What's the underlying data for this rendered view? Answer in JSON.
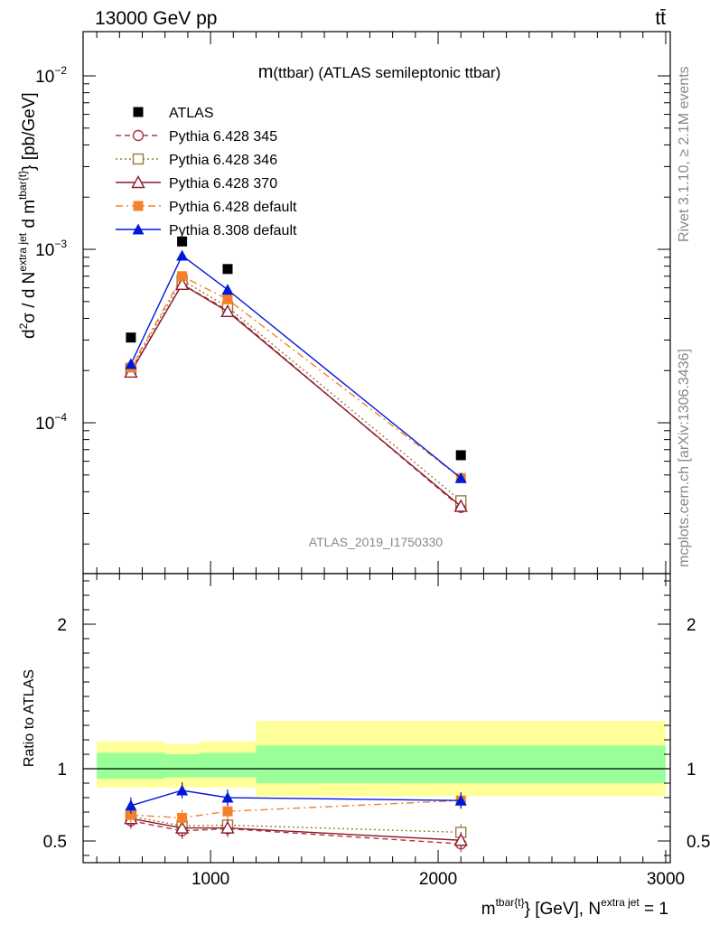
{
  "header": {
    "left": "13000 GeV pp",
    "right": "tt̄"
  },
  "side_texts": {
    "rivet": "Rivet 3.1.10, ≥ 2.1M events",
    "mcplots": "mcplots.cern.ch [arXiv:1306.3436]"
  },
  "chart_data": [
    {
      "type": "scatter",
      "title": "m(ttbar) (ATLAS semileptonic ttbar)",
      "analysis_label": "ATLAS_2019_I1750330",
      "ylabel": "d²σ / d N^{extra jet} d m^{tbar{t}} [pb/GeV]",
      "yscale": "log",
      "xlim": [
        440,
        3020
      ],
      "ylim": [
        1.35e-05,
        0.018
      ],
      "y_ticks": [
        {
          "value": 0.0001,
          "base": "10",
          "exp": "−4"
        },
        {
          "value": 0.001,
          "base": "10",
          "exp": "−3"
        },
        {
          "value": 0.01,
          "base": "10",
          "exp": "−2"
        }
      ],
      "legend_position": "top-left",
      "series": [
        {
          "name": "ATLAS",
          "color": "#000000",
          "marker": "square-filled",
          "line": "none",
          "x": [
            650,
            875,
            1075,
            2100
          ],
          "y": [
            0.00031,
            0.00111,
            0.00077,
            6.5e-05
          ]
        },
        {
          "name": "Pythia 6.428 345",
          "color": "#b03040",
          "marker": "circle-open",
          "line": "dashed",
          "x": [
            650,
            875,
            1075,
            2100
          ],
          "y": [
            0.000198,
            0.00063,
            0.000445,
            3.25e-05
          ]
        },
        {
          "name": "Pythia 6.428 346",
          "color": "#9a7a3a",
          "marker": "square-open",
          "line": "dotted",
          "x": [
            650,
            875,
            1075,
            2100
          ],
          "y": [
            0.000205,
            0.000665,
            0.000465,
            3.55e-05
          ]
        },
        {
          "name": "Pythia 6.428 370",
          "color": "#8b1a2b",
          "marker": "triangle-open",
          "line": "solid",
          "x": [
            650,
            875,
            1075,
            2100
          ],
          "y": [
            0.000196,
            0.000628,
            0.000438,
            3.3e-05
          ]
        },
        {
          "name": "Pythia 6.428 default",
          "color": "#f5822a",
          "marker": "square-filled",
          "line": "dashdot",
          "x": [
            650,
            875,
            1075,
            2100
          ],
          "y": [
            0.000208,
            0.0007,
            0.000515,
            4.8e-05
          ]
        },
        {
          "name": "Pythia 8.308 default",
          "color": "#0018d8",
          "marker": "triangle-filled",
          "line": "solid",
          "x": [
            650,
            875,
            1075,
            2100
          ],
          "y": [
            0.000218,
            0.00092,
            0.000585,
            4.8e-05
          ]
        }
      ]
    },
    {
      "type": "scatter",
      "ylabel": "Ratio to ATLAS",
      "xlabel": "m^{tbar{t}} [GeV], N^{extra jet} = 1",
      "xlim": [
        440,
        3020
      ],
      "ylim": [
        0.35,
        2.35
      ],
      "x_ticks": [
        1000,
        2000,
        3000
      ],
      "y_ticks": [
        0.5,
        1,
        2
      ],
      "reference_line": 1,
      "bands": [
        {
          "x0": 500,
          "x1": 800,
          "yellow": [
            0.87,
            1.19
          ],
          "green": [
            0.93,
            1.11
          ]
        },
        {
          "x0": 800,
          "x1": 950,
          "yellow": [
            0.87,
            1.17
          ],
          "green": [
            0.94,
            1.1
          ]
        },
        {
          "x0": 950,
          "x1": 1200,
          "yellow": [
            0.87,
            1.19
          ],
          "green": [
            0.94,
            1.11
          ]
        },
        {
          "x0": 1200,
          "x1": 3000,
          "yellow": [
            0.81,
            1.33
          ],
          "green": [
            0.9,
            1.16
          ]
        }
      ],
      "series": [
        {
          "name": "Pythia 6.428 345",
          "x": [
            650,
            875,
            1075,
            2100
          ],
          "y": [
            0.64,
            0.57,
            0.585,
            0.48
          ]
        },
        {
          "name": "Pythia 6.428 346",
          "x": [
            650,
            875,
            1075,
            2100
          ],
          "y": [
            0.67,
            0.605,
            0.61,
            0.56
          ]
        },
        {
          "name": "Pythia 6.428 370",
          "x": [
            650,
            875,
            1075,
            2100
          ],
          "y": [
            0.655,
            0.59,
            0.59,
            0.505
          ]
        },
        {
          "name": "Pythia 6.428 default",
          "x": [
            650,
            875,
            1075,
            2100
          ],
          "y": [
            0.68,
            0.66,
            0.705,
            0.78
          ]
        },
        {
          "name": "Pythia 8.308 default",
          "x": [
            650,
            875,
            1075,
            2100
          ],
          "y": [
            0.745,
            0.85,
            0.8,
            0.78
          ]
        }
      ]
    }
  ]
}
